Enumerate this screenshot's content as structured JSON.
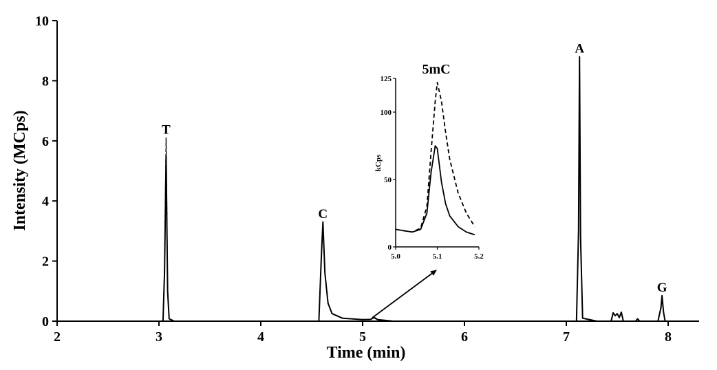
{
  "chart_data": [
    {
      "type": "line",
      "title": "",
      "xlabel": "Time (min)",
      "ylabel": "Intensity (MCps)",
      "xlim": [
        2,
        8.32
      ],
      "ylim": [
        0,
        10
      ],
      "xticks": [
        2,
        3,
        4,
        5,
        6,
        7,
        8
      ],
      "yticks": [
        0,
        2,
        4,
        6,
        8,
        10
      ],
      "xtick_labels": [
        "2",
        "3",
        "4",
        "5",
        "6",
        "7",
        "8"
      ],
      "ytick_labels": [
        "0",
        "2",
        "4",
        "6",
        "8",
        "10"
      ],
      "peaks": [
        {
          "label": "T",
          "time": 3.07,
          "height": 6.1
        },
        {
          "label": "C",
          "time": 4.61,
          "height": 3.3
        },
        {
          "label": "A",
          "time": 7.13,
          "height": 8.8
        },
        {
          "label": "G",
          "time": 7.94,
          "height": 0.85
        }
      ],
      "series": [
        {
          "name": "solid",
          "style": "solid",
          "x": [
            2.0,
            3.04,
            3.055,
            3.07,
            3.085,
            3.1,
            3.15,
            4.57,
            4.595,
            4.61,
            4.63,
            4.66,
            4.7,
            4.8,
            5.0,
            5.08,
            5.11,
            5.15,
            5.3,
            7.1,
            7.12,
            7.13,
            7.14,
            7.16,
            7.3,
            7.44,
            7.46,
            7.48,
            7.5,
            7.52,
            7.54,
            7.56,
            7.68,
            7.7,
            7.72,
            7.9,
            7.93,
            7.94,
            7.955,
            7.97,
            8.3
          ],
          "y": [
            0.0,
            0.0,
            1.6,
            5.5,
            1.0,
            0.08,
            0.0,
            0.0,
            2.2,
            3.3,
            1.6,
            0.6,
            0.25,
            0.1,
            0.05,
            0.06,
            0.12,
            0.05,
            0.0,
            0.0,
            3.0,
            8.8,
            2.8,
            0.1,
            0.0,
            0.0,
            0.28,
            0.18,
            0.25,
            0.12,
            0.3,
            0.0,
            0.0,
            0.08,
            0.0,
            0.0,
            0.45,
            0.85,
            0.3,
            0.0,
            0.0
          ]
        },
        {
          "name": "dashed",
          "style": "dashed",
          "x": [
            2.0,
            3.04,
            3.055,
            3.07,
            3.085,
            3.1,
            3.15,
            4.57,
            4.595,
            4.61,
            4.63,
            4.66,
            4.7,
            4.8,
            5.0,
            5.08,
            5.11,
            5.15,
            5.3,
            7.1,
            7.12,
            7.13,
            7.14,
            7.16,
            7.3,
            7.44,
            7.46,
            7.48,
            7.5,
            7.52,
            7.54,
            7.56,
            7.68,
            7.7,
            7.72,
            7.9,
            7.93,
            7.94,
            7.955,
            7.97,
            8.3
          ],
          "y": [
            0.0,
            0.0,
            1.7,
            6.1,
            1.1,
            0.08,
            0.0,
            0.0,
            2.2,
            3.25,
            1.6,
            0.6,
            0.25,
            0.1,
            0.05,
            0.06,
            0.14,
            0.05,
            0.0,
            0.0,
            3.1,
            8.7,
            2.8,
            0.1,
            0.0,
            0.0,
            0.28,
            0.18,
            0.25,
            0.12,
            0.3,
            0.0,
            0.0,
            0.08,
            0.0,
            0.0,
            0.5,
            0.85,
            0.3,
            0.0,
            0.0
          ]
        }
      ]
    },
    {
      "type": "line",
      "title": "5mC",
      "xlabel": "",
      "ylabel": "kCps",
      "xlim": [
        5.0,
        5.2
      ],
      "ylim": [
        0,
        125
      ],
      "xticks": [
        5.0,
        5.1,
        5.2
      ],
      "yticks": [
        0,
        50,
        100,
        125
      ],
      "xtick_labels": [
        "5.0",
        "5.1",
        "5.2"
      ],
      "ytick_labels": [
        "0",
        "50",
        "100",
        "125"
      ],
      "series": [
        {
          "name": "solid",
          "style": "solid",
          "x": [
            5.0,
            5.02,
            5.04,
            5.06,
            5.075,
            5.085,
            5.095,
            5.1,
            5.11,
            5.12,
            5.13,
            5.15,
            5.17,
            5.19
          ],
          "y": [
            13,
            12,
            11,
            13,
            25,
            55,
            75,
            73,
            48,
            32,
            23,
            15,
            11,
            9
          ]
        },
        {
          "name": "dashed",
          "style": "dashed",
          "x": [
            5.0,
            5.02,
            5.04,
            5.06,
            5.075,
            5.085,
            5.095,
            5.1,
            5.11,
            5.12,
            5.13,
            5.15,
            5.17,
            5.19
          ],
          "y": [
            13,
            12,
            11,
            14,
            30,
            70,
            108,
            122,
            108,
            85,
            65,
            40,
            25,
            15
          ]
        }
      ]
    }
  ]
}
